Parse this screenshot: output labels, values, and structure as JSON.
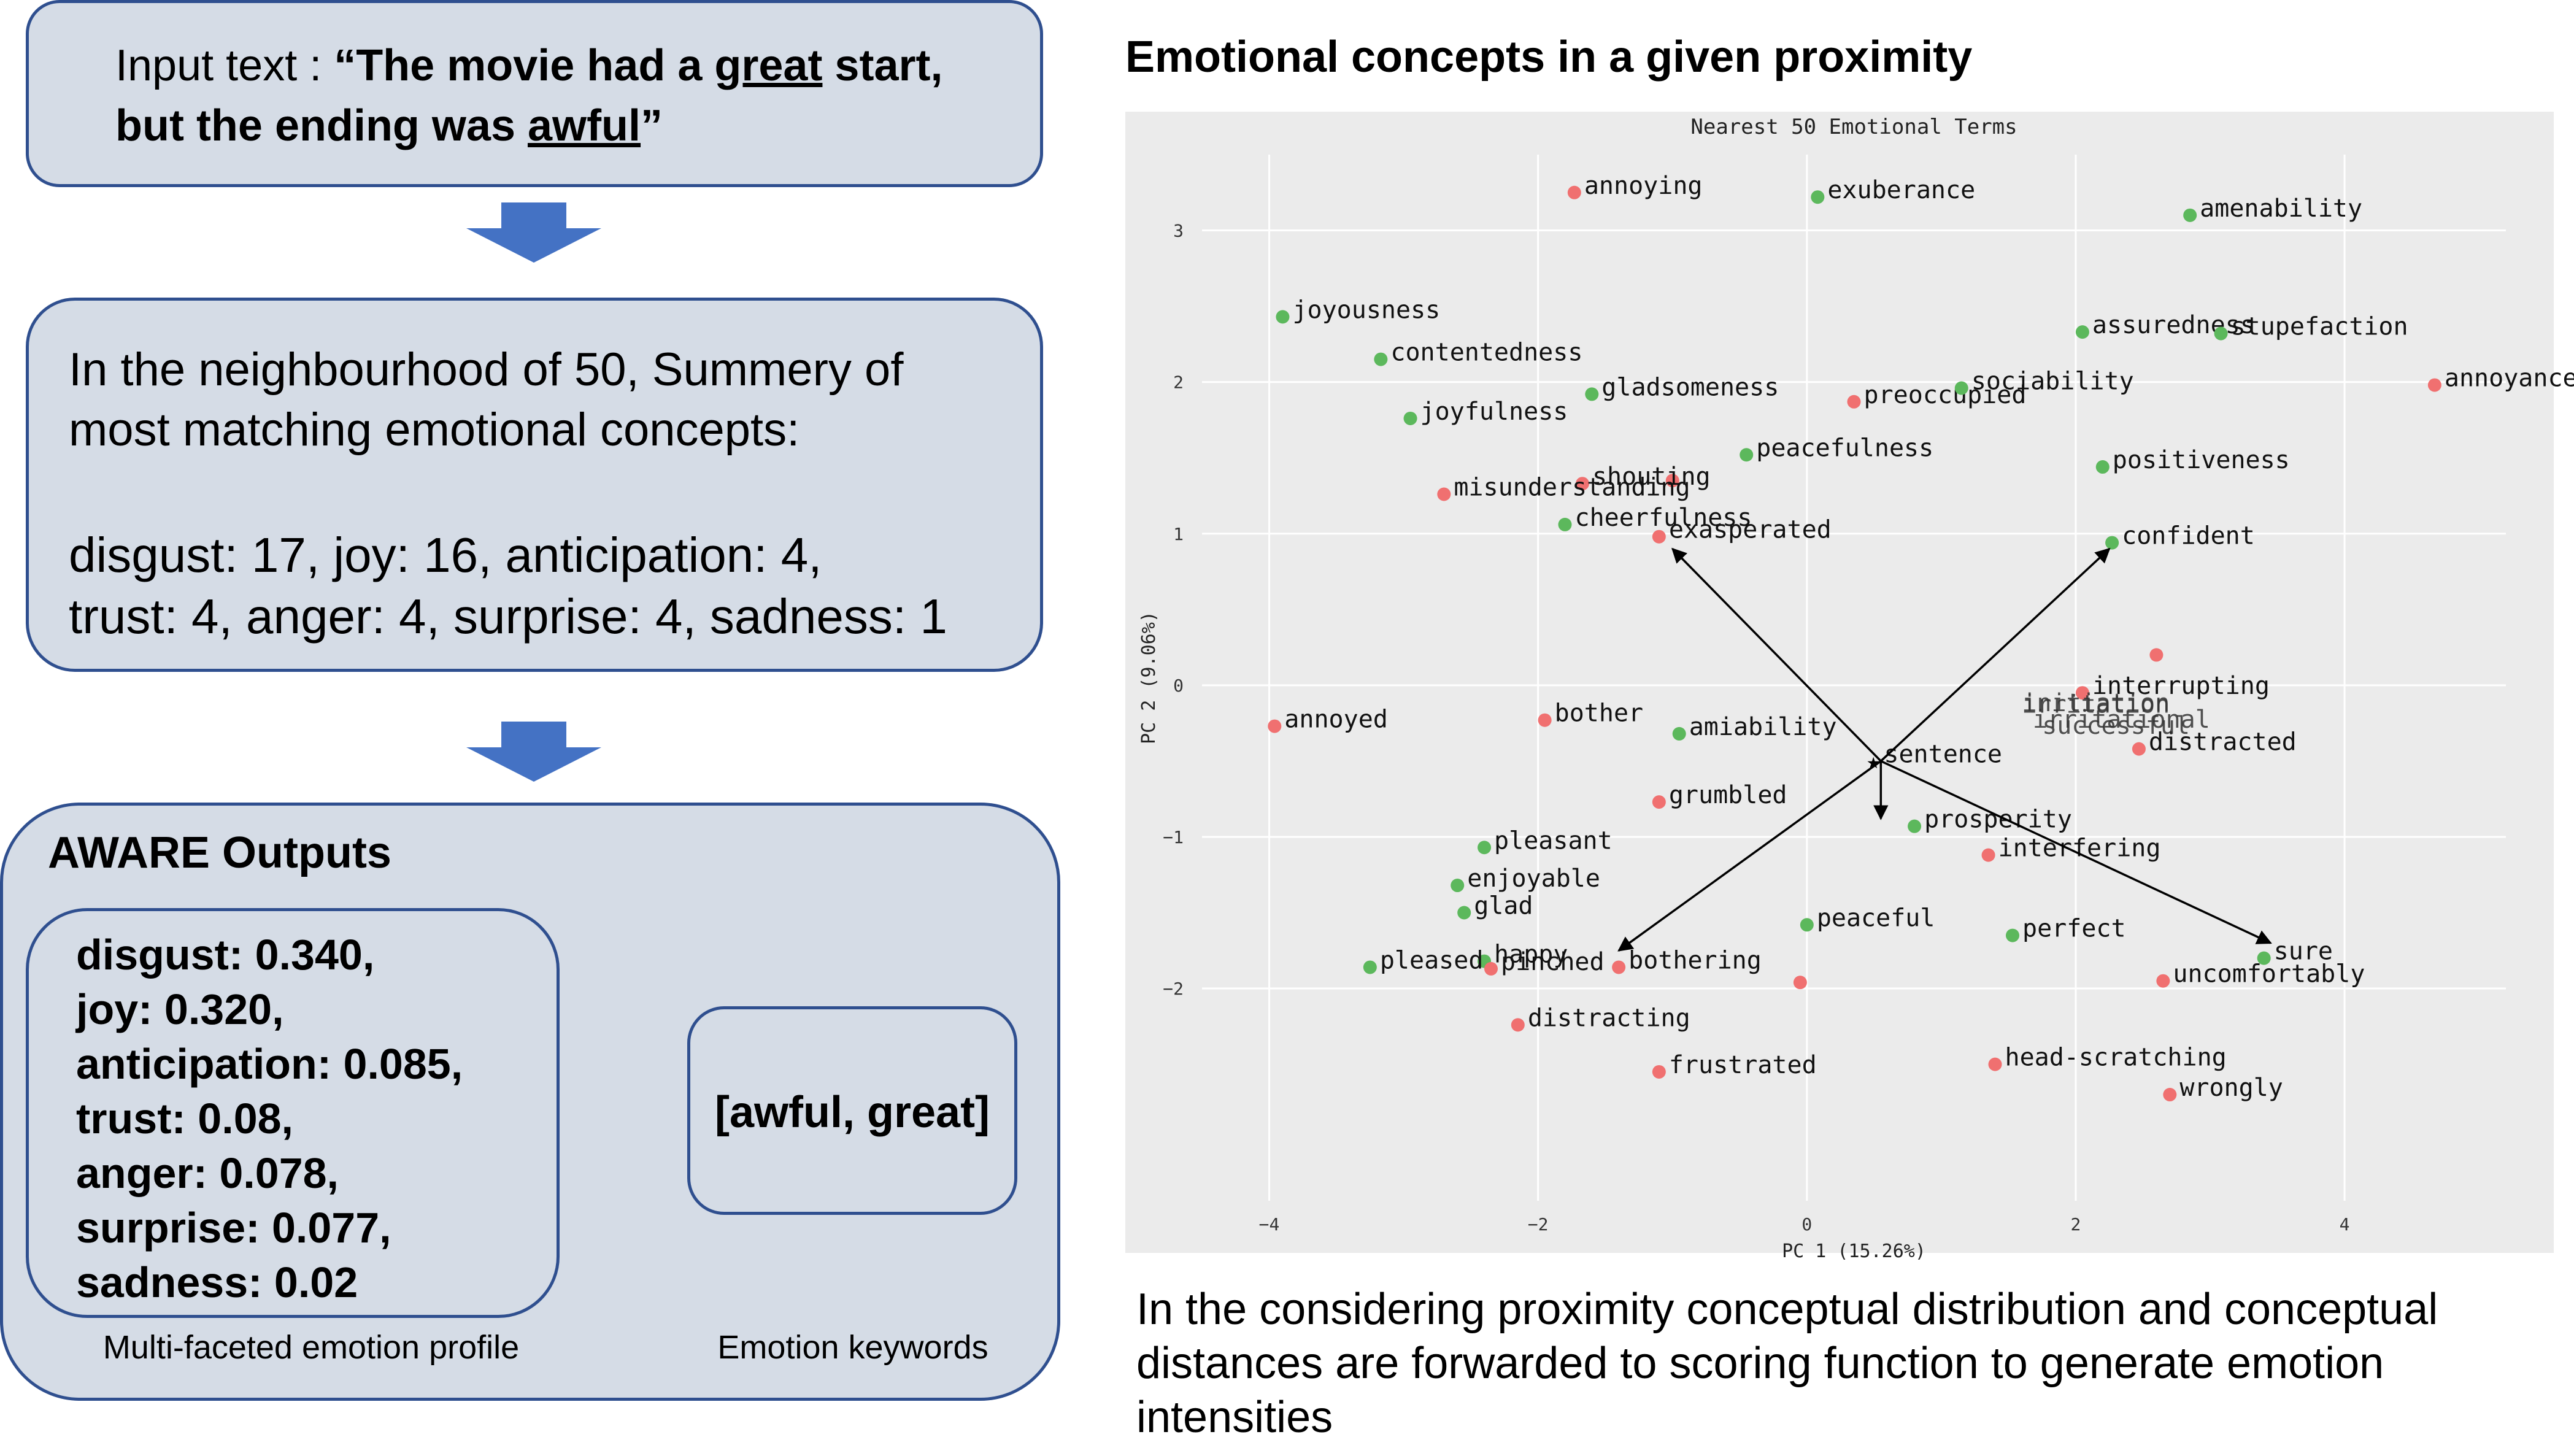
{
  "input_box": {
    "prefix": "Input text : ",
    "quote_open": "“",
    "part1": "The movie had a ",
    "word_great": "great",
    "part2": " start, but the ending was ",
    "word_awful": "awful",
    "quote_close": "”"
  },
  "neighbourhood_box": {
    "line1": "In the neighbourhood of 50, Summery of",
    "line2": "most matching emotional concepts:",
    "line3": "disgust: 17, joy: 16, anticipation: 4,",
    "line4": "trust: 4, anger: 4, surprise: 4, sadness: 1"
  },
  "aware_box": {
    "title": "AWARE Outputs",
    "profile_lines": [
      "disgust: 0.340,",
      "joy: 0.320,",
      "anticipation: 0.085,",
      "trust: 0.08,",
      "anger: 0.078,",
      "surprise: 0.077,",
      "sadness: 0.02"
    ],
    "keywords": "[awful, great]",
    "profile_caption": "Multi-faceted emotion profile",
    "keywords_caption": "Emotion keywords"
  },
  "right_heading": "Emotional concepts in a given proximity",
  "bottom_text": "In the considering proximity conceptual distribution and conceptual distances are forwarded to scoring function to generate emotion intensities",
  "colors": {
    "box_fill": "#d5dce6",
    "box_border": "#2f4f8f",
    "arrow": "#4472c4",
    "green": "#5cb85c",
    "red": "#f07070",
    "plot_bg": "#ebebeb"
  },
  "chart_data": {
    "type": "scatter",
    "title": "Nearest 50 Emotional Terms",
    "xlabel": "PC 1 (15.26%)",
    "ylabel": "PC 2 (9.06%)",
    "xlim": [
      -4.5,
      5.2
    ],
    "ylim": [
      -3.4,
      3.5
    ],
    "xticks": [
      -4,
      -2,
      0,
      2,
      4
    ],
    "yticks": [
      -2,
      -1,
      0,
      1,
      2,
      3
    ],
    "grid": true,
    "points": [
      {
        "label": "annoying",
        "x": -1.73,
        "y": 3.25,
        "c": "red"
      },
      {
        "label": "exuberance",
        "x": 0.08,
        "y": 3.22,
        "c": "green"
      },
      {
        "label": "amenability",
        "x": 2.85,
        "y": 3.1,
        "c": "green"
      },
      {
        "label": "joyousness",
        "x": -3.9,
        "y": 2.43,
        "c": "green"
      },
      {
        "label": "contentedness",
        "x": -3.17,
        "y": 2.15,
        "c": "green"
      },
      {
        "label": "assuredness",
        "x": 2.05,
        "y": 2.33,
        "c": "green"
      },
      {
        "label": "stupefaction",
        "x": 3.08,
        "y": 2.32,
        "c": "green"
      },
      {
        "label": "annoyance",
        "x": 4.67,
        "y": 1.98,
        "c": "red"
      },
      {
        "label": "joyfulness",
        "x": -2.95,
        "y": 1.76,
        "c": "green"
      },
      {
        "label": "gladsomeness",
        "x": -1.6,
        "y": 1.92,
        "c": "green"
      },
      {
        "label": "preoccupied",
        "x": 0.35,
        "y": 1.87,
        "c": "red"
      },
      {
        "label": "sociability",
        "x": 1.15,
        "y": 1.96,
        "c": "green"
      },
      {
        "label": "peacefulness",
        "x": -0.45,
        "y": 1.52,
        "c": "green"
      },
      {
        "label": "positiveness",
        "x": 2.2,
        "y": 1.44,
        "c": "green"
      },
      {
        "label": "shouting",
        "x": -1.67,
        "y": 1.33,
        "c": "red"
      },
      {
        "label": "misunderstanding",
        "x": -2.7,
        "y": 1.26,
        "c": "red"
      },
      {
        "label": "cheerfulness",
        "x": -1.8,
        "y": 1.06,
        "c": "green"
      },
      {
        "label": "exasperated",
        "x": -1.1,
        "y": 0.98,
        "c": "red"
      },
      {
        "label": "confident",
        "x": 2.27,
        "y": 0.94,
        "c": "green"
      },
      {
        "label": "annoyed",
        "x": -3.96,
        "y": -0.27,
        "c": "red"
      },
      {
        "label": "bother",
        "x": -1.95,
        "y": -0.23,
        "c": "red"
      },
      {
        "label": "amiability",
        "x": -0.95,
        "y": -0.32,
        "c": "green"
      },
      {
        "label": "interrupting",
        "x": 2.05,
        "y": -0.05,
        "c": "red"
      },
      {
        "label": "distracted",
        "x": 2.47,
        "y": -0.42,
        "c": "red"
      },
      {
        "label": "sentence",
        "x": 0.5,
        "y": -0.5,
        "c": "black"
      },
      {
        "label": "grumbled",
        "x": -1.1,
        "y": -0.77,
        "c": "red"
      },
      {
        "label": "pleasant",
        "x": -2.4,
        "y": -1.07,
        "c": "green"
      },
      {
        "label": "prosperity",
        "x": 0.8,
        "y": -0.93,
        "c": "green"
      },
      {
        "label": "interfering",
        "x": 1.35,
        "y": -1.12,
        "c": "red"
      },
      {
        "label": "enjoyable",
        "x": -2.6,
        "y": -1.32,
        "c": "green"
      },
      {
        "label": "glad",
        "x": -2.55,
        "y": -1.5,
        "c": "green"
      },
      {
        "label": "peaceful",
        "x": 0.0,
        "y": -1.58,
        "c": "green"
      },
      {
        "label": "perfect",
        "x": 1.53,
        "y": -1.65,
        "c": "green"
      },
      {
        "label": "happy",
        "x": -2.4,
        "y": -1.82,
        "c": "green"
      },
      {
        "label": "pinched",
        "x": -2.35,
        "y": -1.87,
        "c": "red"
      },
      {
        "label": "sure",
        "x": 3.4,
        "y": -1.8,
        "c": "green"
      },
      {
        "label": "pleased",
        "x": -3.25,
        "y": -1.86,
        "c": "green"
      },
      {
        "label": "bothering",
        "x": -1.4,
        "y": -1.86,
        "c": "red"
      },
      {
        "label": "uncomfortably",
        "x": 2.65,
        "y": -1.95,
        "c": "red"
      },
      {
        "label": "distracting",
        "x": -2.15,
        "y": -2.24,
        "c": "red"
      },
      {
        "label": "frustrated",
        "x": -1.1,
        "y": -2.55,
        "c": "red"
      },
      {
        "label": "head-scratching",
        "x": 1.4,
        "y": -2.5,
        "c": "red"
      },
      {
        "label": "wrongly",
        "x": 2.7,
        "y": -2.7,
        "c": "red"
      }
    ],
    "unlabeled_points": [
      {
        "x": 2.6,
        "y": 0.2,
        "c": "red"
      },
      {
        "x": -0.05,
        "y": -1.96,
        "c": "red"
      },
      {
        "x": -1.0,
        "y": 1.35,
        "c": "red"
      }
    ],
    "overlap_labels": [
      {
        "label": "irritation",
        "x": 1.6,
        "y": -0.18
      },
      {
        "label": "initiation",
        "x": 1.6,
        "y": -0.17
      },
      {
        "label": "irritational",
        "x": 1.68,
        "y": -0.28
      },
      {
        "label": "successful",
        "x": 1.75,
        "y": -0.32
      }
    ],
    "arrows_from": {
      "x": 0.55,
      "y": -0.5
    },
    "arrows_to": [
      {
        "x": -1.0,
        "y": 0.9
      },
      {
        "x": 2.25,
        "y": 0.9
      },
      {
        "x": 0.55,
        "y": -0.88
      },
      {
        "x": -1.4,
        "y": -1.75
      },
      {
        "x": 3.45,
        "y": -1.7
      }
    ]
  }
}
